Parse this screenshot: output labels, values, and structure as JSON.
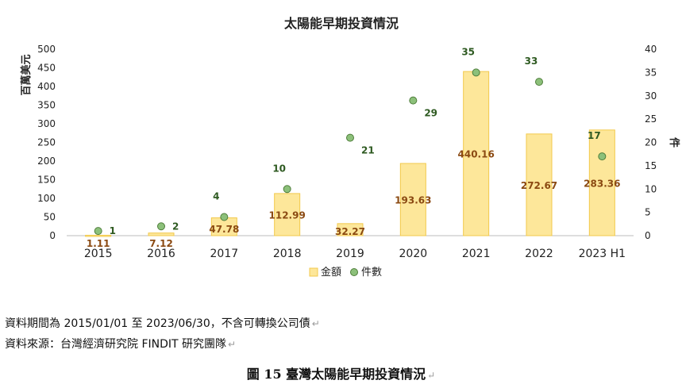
{
  "chart_data": {
    "type": "bar",
    "title": "太陽能早期投資情況",
    "categories": [
      "2015",
      "2016",
      "2017",
      "2018",
      "2019",
      "2020",
      "2021",
      "2022",
      "2023 H1"
    ],
    "series": [
      {
        "name": "金額",
        "type": "bar",
        "axis": "left",
        "values": [
          1.11,
          7.12,
          47.78,
          112.99,
          32.27,
          193.63,
          440.16,
          272.67,
          283.36
        ],
        "labels": [
          "1.11",
          "7.12",
          "47.78",
          "112.99",
          "32.27",
          "193.63",
          "440.16",
          "272.67",
          "283.36"
        ]
      },
      {
        "name": "件數",
        "type": "scatter",
        "axis": "right",
        "values": [
          1,
          2,
          4,
          10,
          21,
          29,
          35,
          33,
          17
        ],
        "labels": [
          "1",
          "2",
          "4",
          "10",
          "21",
          "29",
          "35",
          "33",
          "17"
        ]
      }
    ],
    "ylabel": "百萬美元",
    "y2label": "件",
    "ylim": [
      0,
      500
    ],
    "y2lim": [
      0,
      40
    ],
    "yticks": [
      "0",
      "50",
      "100",
      "150",
      "200",
      "250",
      "300",
      "350",
      "400",
      "450",
      "500"
    ],
    "y2ticks": [
      "0",
      "5",
      "10",
      "15",
      "20",
      "25",
      "30",
      "35",
      "40"
    ],
    "grid": false,
    "legend": "bottom-center",
    "colors": {
      "bar_fill": "#fde79a",
      "bar_stroke": "#f2c94c",
      "bar_label": "#8b4a12",
      "dot_fill": "#8cc07a",
      "dot_stroke": "#4e7d3a",
      "dot_label": "#2e5a21"
    }
  },
  "notes": {
    "period": "資料期間為 2015/01/01 至 2023/06/30，不含可轉換公司債",
    "source": "資料來源：台灣經濟研究院 FINDIT 研究團隊",
    "return_mark": "↵"
  },
  "caption": "圖 15  臺灣太陽能早期投資情況"
}
